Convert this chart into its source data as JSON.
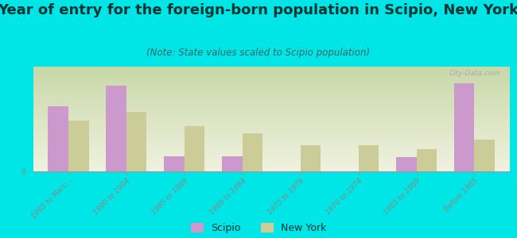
{
  "title": "Year of entry for the foreign-born population in Scipio, New York",
  "subtitle": "(Note: State values scaled to Scipio population)",
  "categories": [
    "1995 to Marc...",
    "1990 to 1994",
    "1985 to 1989",
    "1980 to 1984",
    "1975 to 1979",
    "1970 to 1974",
    "1965 to 1969",
    "Before 1965"
  ],
  "scipio_values": [
    55,
    72,
    13,
    13,
    0,
    0,
    12,
    74
  ],
  "newyork_values": [
    43,
    50,
    38,
    32,
    22,
    22,
    19,
    27
  ],
  "scipio_color": "#cc99cc",
  "newyork_color": "#cccc99",
  "figure_bg": "#00e5e5",
  "chart_bg_top": "#c8d8a8",
  "chart_bg_bottom": "#f0f2e0",
  "title_color": "#003333",
  "subtitle_color": "#336666",
  "tick_color": "#888888",
  "watermark": "City-Data.com",
  "watermark_color": "#aaaaaa",
  "bar_width": 0.35,
  "ylim": [
    0,
    88
  ],
  "title_fontsize": 13,
  "subtitle_fontsize": 8.5,
  "legend_fontsize": 9,
  "tick_fontsize": 6.5
}
